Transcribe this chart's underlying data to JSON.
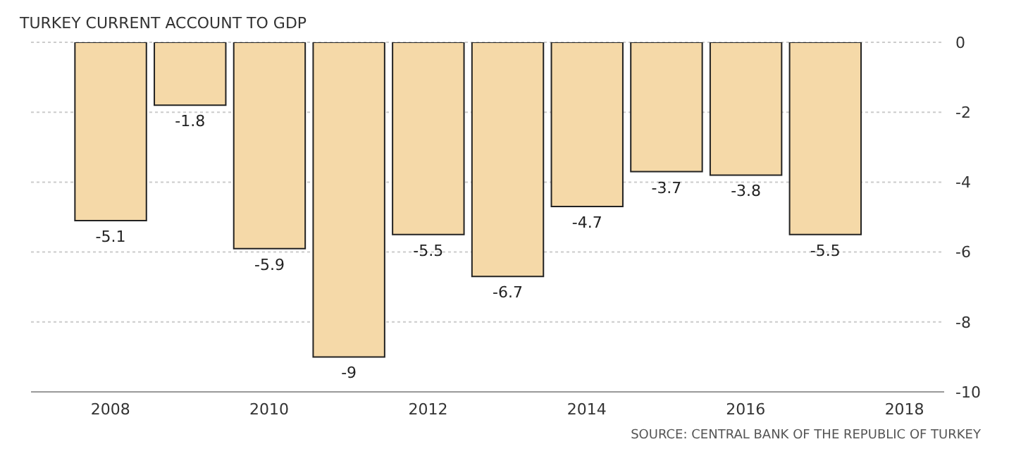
{
  "chart_data": {
    "type": "bar",
    "title": "TURKEY CURRENT ACCOUNT TO GDP",
    "annotations": [
      "SOURCE: CENTRAL BANK OF THE REPUBLIC OF TURKEY"
    ],
    "x": [
      2008,
      2009,
      2010,
      2011,
      2012,
      2013,
      2014,
      2015,
      2016,
      2017
    ],
    "values": [
      -5.1,
      -1.8,
      -5.9,
      -9,
      -5.5,
      -6.7,
      -4.7,
      -3.7,
      -3.8,
      -5.5
    ],
    "color": "#f5d9a8",
    "data_labels": true,
    "xlim": [
      2007,
      2018.5
    ],
    "xticks": [
      2008,
      2010,
      2012,
      2014,
      2016,
      2018
    ],
    "ylim": [
      -10,
      0
    ],
    "yticks": [
      -10,
      -8,
      -6,
      -4,
      -2,
      0
    ],
    "grid": "y"
  }
}
